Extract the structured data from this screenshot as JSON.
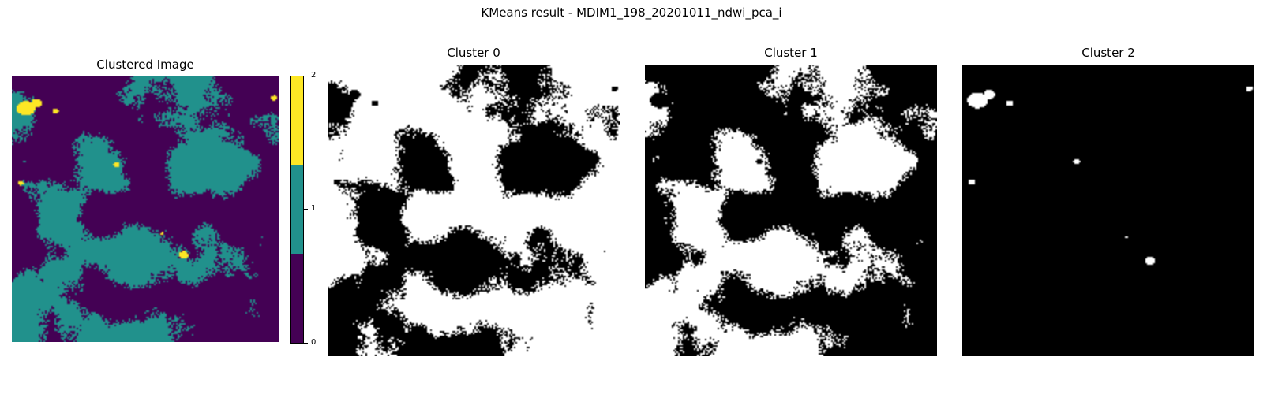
{
  "figure": {
    "suptitle": "KMeans result - MDIM1_198_20201011_ndwi_pca_i"
  },
  "panels": {
    "clustered": {
      "title": "Clustered Image",
      "colormap": "viridis",
      "class_colors": [
        "#440154",
        "#21918c",
        "#fde725"
      ]
    },
    "cluster0": {
      "title": "Cluster 0"
    },
    "cluster1": {
      "title": "Cluster 1"
    },
    "cluster2": {
      "title": "Cluster 2"
    }
  },
  "colorbar": {
    "ticks": [
      "0",
      "1",
      "2"
    ],
    "colors": [
      "#440154",
      "#21918c",
      "#fde725"
    ]
  }
}
